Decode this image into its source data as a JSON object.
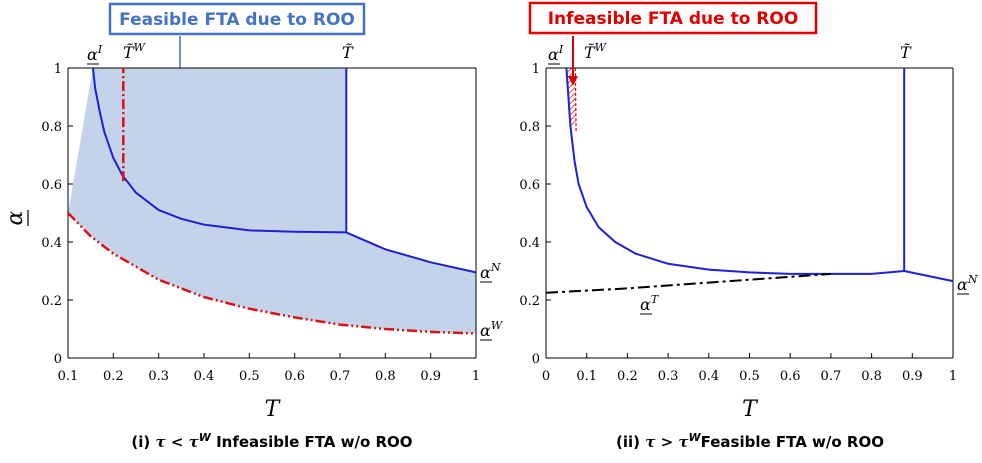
{
  "callouts": {
    "left": "Feasible FTA due to ROO",
    "right": "Infeasible FTA due to ROO"
  },
  "colors": {
    "blue_curve": "#1f1fd6",
    "red_curve": "#dd1111",
    "fill": "#c5d3ea",
    "callout_blue": "#4472c4",
    "callout_red": "#e00000",
    "black_dash": "#000000"
  },
  "chart_data": [
    {
      "type": "line",
      "caption_prefix": "(i) ",
      "caption_math": "τ < τ",
      "caption_sup": "W",
      "caption_suffix": " Infeasible FTA w/o ROO",
      "xlabel": "T",
      "ylabel": "α",
      "xlim": [
        0.1,
        1.0
      ],
      "ylim": [
        0,
        1
      ],
      "xticks": [
        "0.1",
        "0.2",
        "0.3",
        "0.4",
        "0.5",
        "0.6",
        "0.7",
        "0.8",
        "0.9",
        "1"
      ],
      "yticks": [
        "0",
        "0.2",
        "0.4",
        "0.6",
        "0.8",
        "1"
      ],
      "grid": false,
      "curve_labels": [
        {
          "base": "α",
          "sup": "I"
        },
        {
          "base": "T̃",
          "sup": "W"
        },
        {
          "base": "T̃",
          "sup": ""
        },
        {
          "base": "α",
          "sup": "N"
        },
        {
          "base": "α",
          "sup": "W"
        }
      ],
      "series": [
        {
          "key": "alpha_I",
          "x": [
            0.155,
            0.16,
            0.17,
            0.18,
            0.2,
            0.22,
            0.25,
            0.3,
            0.35,
            0.4,
            0.5,
            0.6,
            0.714
          ],
          "y": [
            1.0,
            0.93,
            0.85,
            0.78,
            0.69,
            0.63,
            0.57,
            0.51,
            0.48,
            0.46,
            0.44,
            0.435,
            0.433
          ]
        },
        {
          "key": "T_tilde",
          "x": [
            0.714,
            0.714
          ],
          "y": [
            0.433,
            1.0
          ]
        },
        {
          "key": "alpha_N",
          "x": [
            0.714,
            0.8,
            0.9,
            1.0
          ],
          "y": [
            0.433,
            0.375,
            0.33,
            0.295
          ]
        },
        {
          "key": "T_tilde_W",
          "x": [
            0.222,
            0.222
          ],
          "y": [
            0.61,
            1.0
          ]
        },
        {
          "key": "alpha_W",
          "x": [
            0.1,
            0.15,
            0.2,
            0.3,
            0.4,
            0.5,
            0.6,
            0.7,
            0.8,
            0.9,
            1.0
          ],
          "y": [
            0.5,
            0.42,
            0.36,
            0.27,
            0.21,
            0.17,
            0.14,
            0.115,
            0.1,
            0.09,
            0.085
          ]
        }
      ]
    },
    {
      "type": "line",
      "caption_prefix": "(ii) ",
      "caption_math": "τ > τ",
      "caption_sup": "W",
      "caption_suffix": "Feasible FTA w/o ROO",
      "xlabel": "T",
      "ylabel": "",
      "xlim": [
        0,
        1
      ],
      "ylim": [
        0,
        1
      ],
      "xticks": [
        "0",
        "0.1",
        "0.2",
        "0.3",
        "0.4",
        "0.5",
        "0.6",
        "0.7",
        "0.8",
        "0.9",
        "1"
      ],
      "yticks": [
        "0",
        "0.2",
        "0.4",
        "0.6",
        "0.8",
        "1"
      ],
      "grid": false,
      "curve_labels": [
        {
          "base": "α",
          "sup": "I"
        },
        {
          "base": "T̃",
          "sup": "W"
        },
        {
          "base": "T̃",
          "sup": ""
        },
        {
          "base": "α",
          "sup": "N"
        },
        {
          "base": "α",
          "sup": "T"
        }
      ],
      "series": [
        {
          "key": "alpha_I",
          "x": [
            0.05,
            0.055,
            0.06,
            0.07,
            0.08,
            0.1,
            0.13,
            0.17,
            0.22,
            0.3,
            0.4,
            0.5,
            0.6,
            0.7,
            0.8,
            0.88
          ],
          "y": [
            1.0,
            0.9,
            0.8,
            0.68,
            0.6,
            0.52,
            0.45,
            0.4,
            0.36,
            0.325,
            0.305,
            0.295,
            0.29,
            0.29,
            0.29,
            0.3
          ]
        },
        {
          "key": "T_tilde",
          "x": [
            0.88,
            0.88
          ],
          "y": [
            0.3,
            1.0
          ]
        },
        {
          "key": "alpha_N",
          "x": [
            0.88,
            1.0
          ],
          "y": [
            0.3,
            0.265
          ]
        },
        {
          "key": "alpha_T",
          "x": [
            0.0,
            0.2,
            0.4,
            0.6,
            0.7
          ],
          "y": [
            0.225,
            0.24,
            0.26,
            0.28,
            0.29
          ]
        }
      ]
    }
  ]
}
